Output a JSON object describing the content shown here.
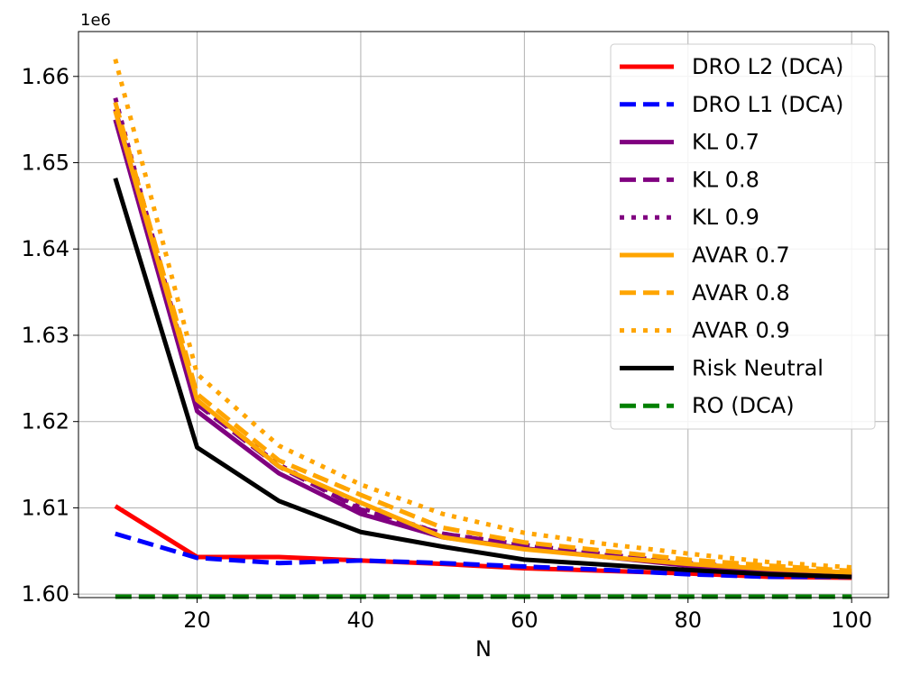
{
  "chart_data": {
    "type": "line",
    "xlabel": "N",
    "ylabel": "",
    "y_offset_text": "1e6",
    "xlim": [
      5.5,
      104.5
    ],
    "ylim": [
      1.5996,
      1.6652
    ],
    "x_ticks": [
      20,
      40,
      60,
      80,
      100
    ],
    "x_tick_labels": [
      "20",
      "40",
      "60",
      "80",
      "100"
    ],
    "y_ticks": [
      1.6,
      1.61,
      1.62,
      1.63,
      1.64,
      1.65,
      1.66
    ],
    "y_tick_labels": [
      "1.60",
      "1.61",
      "1.62",
      "1.63",
      "1.64",
      "1.65",
      "1.66"
    ],
    "grid": true,
    "legend_position": "top-right",
    "x": [
      10,
      20,
      30,
      40,
      50,
      60,
      70,
      80,
      90,
      100
    ],
    "series": [
      {
        "name": "DRO L2 (DCA)",
        "color": "#ff0000",
        "style": "solid",
        "values": [
          1.6102,
          1.6043,
          1.6043,
          1.6039,
          1.6035,
          1.603,
          1.6027,
          1.6024,
          1.602,
          1.6019
        ]
      },
      {
        "name": "DRO L1 (DCA)",
        "color": "#0000ff",
        "style": "dashed",
        "values": [
          1.607,
          1.6042,
          1.6036,
          1.6039,
          1.6036,
          1.6032,
          1.6028,
          1.6023,
          1.602,
          1.602
        ]
      },
      {
        "name": "KL 0.7",
        "color": "#800080",
        "style": "solid",
        "values": [
          1.655,
          1.6212,
          1.614,
          1.6093,
          1.6066,
          1.6053,
          1.6043,
          1.6033,
          1.6026,
          1.6022
        ]
      },
      {
        "name": "KL 0.8",
        "color": "#800080",
        "style": "dashed",
        "values": [
          1.6562,
          1.622,
          1.6148,
          1.6098,
          1.607,
          1.6056,
          1.6045,
          1.6035,
          1.6028,
          1.6023
        ]
      },
      {
        "name": "KL 0.9",
        "color": "#800080",
        "style": "dotted",
        "values": [
          1.6575,
          1.6222,
          1.615,
          1.61,
          1.607,
          1.6057,
          1.6046,
          1.6036,
          1.6029,
          1.6024
        ]
      },
      {
        "name": "AVAR 0.7",
        "color": "#ffa500",
        "style": "solid",
        "values": [
          1.656,
          1.6225,
          1.6148,
          1.6106,
          1.6066,
          1.6052,
          1.6043,
          1.6035,
          1.6029,
          1.6025
        ]
      },
      {
        "name": "AVAR 0.8",
        "color": "#ffa500",
        "style": "dashed",
        "values": [
          1.657,
          1.6232,
          1.6155,
          1.6115,
          1.6077,
          1.606,
          1.605,
          1.604,
          1.6033,
          1.6027
        ]
      },
      {
        "name": "AVAR 0.9",
        "color": "#ffa500",
        "style": "dotted",
        "values": [
          1.662,
          1.6255,
          1.6172,
          1.6127,
          1.6093,
          1.6071,
          1.6058,
          1.6047,
          1.6037,
          1.6031
        ]
      },
      {
        "name": "Risk Neutral",
        "color": "#000000",
        "style": "solid",
        "values": [
          1.6482,
          1.617,
          1.6108,
          1.6072,
          1.6055,
          1.604,
          1.6034,
          1.6028,
          1.6023,
          1.602
        ]
      },
      {
        "name": "RO (DCA)",
        "color": "#008000",
        "style": "dashed",
        "values": [
          1.5997,
          1.5997,
          1.5997,
          1.5997,
          1.5997,
          1.5997,
          1.5997,
          1.5997,
          1.5997,
          1.5997
        ]
      }
    ]
  }
}
